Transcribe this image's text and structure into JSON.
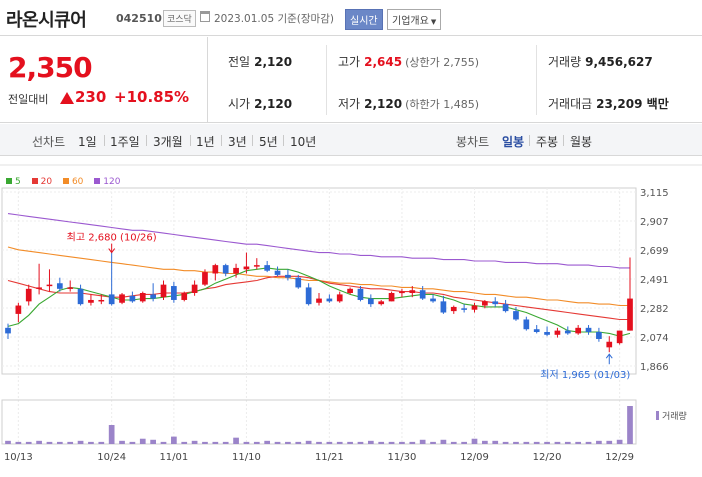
{
  "header": {
    "stock_name": "라온시큐어",
    "stock_code": "042510",
    "market": "코스닥",
    "date": "2023.01.05 기준(장마감)",
    "realtime_label": "실시간",
    "company_label": "기업개요"
  },
  "quote": {
    "price": "2,350",
    "change_label": "전일대비",
    "change_value": "230",
    "change_pct": "+10.85%",
    "prev_close_label": "전일",
    "prev_close": "2,120",
    "high_label": "고가",
    "high": "2,645",
    "upper_limit": "(상한가 2,755)",
    "volume_label": "거래량",
    "volume": "9,456,627",
    "open_label": "시가",
    "open": "2,120",
    "low_label": "저가",
    "low": "2,120",
    "lower_limit": "(하한가 1,485)",
    "amount_label": "거래대금",
    "amount": "23,209 백만"
  },
  "period": {
    "line_title": "선차트",
    "line_options": [
      "1일",
      "1주일",
      "3개월",
      "1년",
      "3년",
      "5년",
      "10년"
    ],
    "candle_title": "봉차트",
    "candle_options": [
      "일봉",
      "주봉",
      "월봉"
    ],
    "active": "일봉"
  },
  "legend": [
    {
      "label": "5",
      "color": "#3aa832"
    },
    {
      "label": "20",
      "color": "#e53935"
    },
    {
      "label": "60",
      "color": "#f28c28"
    },
    {
      "label": "120",
      "color": "#9b59d0"
    }
  ],
  "chart_data": {
    "type": "candlestick",
    "y_ticks": [
      "3,115",
      "2,907",
      "2,699",
      "2,491",
      "2,282",
      "2,074",
      "1,866"
    ],
    "ylim": [
      1866,
      3115
    ],
    "x_tick_labels": [
      "10/13",
      "10/24",
      "11/01",
      "11/10",
      "11/21",
      "11/30",
      "12/09",
      "12/20",
      "12/29"
    ],
    "x_tick_index": [
      1,
      10,
      16,
      23,
      31,
      38,
      45,
      52,
      59
    ],
    "high_annotation": "최고 2,680 (10/26)",
    "low_annotation": "최저 1,965 (01/03)",
    "volume_label": "거래량",
    "up_color": "#e4101e",
    "down_color": "#2d6bd6",
    "candles": [
      [
        2140,
        2170,
        2060,
        2100
      ],
      [
        2240,
        2320,
        2180,
        2300
      ],
      [
        2330,
        2450,
        2300,
        2420
      ],
      [
        2420,
        2600,
        2380,
        2430
      ],
      [
        2440,
        2560,
        2400,
        2450
      ],
      [
        2460,
        2500,
        2400,
        2420
      ],
      [
        2430,
        2480,
        2400,
        2430
      ],
      [
        2420,
        2450,
        2300,
        2310
      ],
      [
        2320,
        2380,
        2300,
        2340
      ],
      [
        2340,
        2380,
        2310,
        2340
      ],
      [
        2380,
        2680,
        2300,
        2310
      ],
      [
        2320,
        2390,
        2310,
        2380
      ],
      [
        2370,
        2400,
        2320,
        2330
      ],
      [
        2330,
        2400,
        2320,
        2390
      ],
      [
        2380,
        2460,
        2330,
        2350
      ],
      [
        2360,
        2480,
        2340,
        2450
      ],
      [
        2440,
        2470,
        2320,
        2340
      ],
      [
        2340,
        2400,
        2330,
        2390
      ],
      [
        2390,
        2480,
        2370,
        2450
      ],
      [
        2450,
        2560,
        2440,
        2540
      ],
      [
        2530,
        2600,
        2480,
        2590
      ],
      [
        2590,
        2600,
        2510,
        2530
      ],
      [
        2530,
        2600,
        2500,
        2570
      ],
      [
        2560,
        2680,
        2530,
        2580
      ],
      [
        2580,
        2640,
        2560,
        2590
      ],
      [
        2590,
        2620,
        2540,
        2550
      ],
      [
        2550,
        2580,
        2510,
        2520
      ],
      [
        2520,
        2560,
        2480,
        2500
      ],
      [
        2500,
        2520,
        2420,
        2430
      ],
      [
        2430,
        2460,
        2300,
        2310
      ],
      [
        2320,
        2390,
        2300,
        2350
      ],
      [
        2350,
        2380,
        2320,
        2330
      ],
      [
        2330,
        2400,
        2320,
        2380
      ],
      [
        2390,
        2430,
        2380,
        2420
      ],
      [
        2420,
        2440,
        2330,
        2340
      ],
      [
        2350,
        2380,
        2290,
        2310
      ],
      [
        2310,
        2340,
        2300,
        2330
      ],
      [
        2330,
        2400,
        2330,
        2390
      ],
      [
        2390,
        2420,
        2360,
        2400
      ],
      [
        2390,
        2440,
        2360,
        2410
      ],
      [
        2410,
        2440,
        2340,
        2350
      ],
      [
        2350,
        2380,
        2320,
        2330
      ],
      [
        2330,
        2370,
        2240,
        2250
      ],
      [
        2260,
        2300,
        2240,
        2290
      ],
      [
        2280,
        2310,
        2250,
        2270
      ],
      [
        2270,
        2320,
        2250,
        2300
      ],
      [
        2300,
        2340,
        2280,
        2330
      ],
      [
        2330,
        2360,
        2290,
        2310
      ],
      [
        2310,
        2340,
        2250,
        2260
      ],
      [
        2260,
        2290,
        2190,
        2200
      ],
      [
        2200,
        2220,
        2120,
        2130
      ],
      [
        2130,
        2160,
        2100,
        2110
      ],
      [
        2110,
        2150,
        2080,
        2090
      ],
      [
        2090,
        2140,
        2070,
        2120
      ],
      [
        2120,
        2150,
        2090,
        2100
      ],
      [
        2100,
        2160,
        2090,
        2140
      ],
      [
        2140,
        2160,
        2090,
        2110
      ],
      [
        2110,
        2140,
        2040,
        2060
      ],
      [
        2000,
        2080,
        1965,
        2040
      ],
      [
        2030,
        2120,
        2020,
        2120
      ],
      [
        2120,
        2645,
        2120,
        2350
      ]
    ],
    "ma5": [
      2150,
      2170,
      2230,
      2310,
      2360,
      2410,
      2430,
      2420,
      2400,
      2380,
      2360,
      2340,
      2340,
      2350,
      2350,
      2360,
      2370,
      2380,
      2400,
      2420,
      2460,
      2490,
      2520,
      2550,
      2560,
      2570,
      2560,
      2560,
      2540,
      2510,
      2480,
      2440,
      2410,
      2380,
      2360,
      2350,
      2350,
      2350,
      2360,
      2370,
      2380,
      2380,
      2360,
      2340,
      2310,
      2300,
      2290,
      2290,
      2290,
      2270,
      2250,
      2220,
      2190,
      2160,
      2120,
      2110,
      2110,
      2110,
      2100,
      2080,
      2100
    ],
    "ma20": [
      2480,
      2460,
      2440,
      2420,
      2400,
      2390,
      2390,
      2390,
      2380,
      2370,
      2360,
      2360,
      2370,
      2380,
      2380,
      2390,
      2390,
      2390,
      2400,
      2420,
      2430,
      2450,
      2460,
      2470,
      2480,
      2500,
      2510,
      2510,
      2510,
      2500,
      2480,
      2460,
      2450,
      2440,
      2430,
      2420,
      2420,
      2410,
      2400,
      2400,
      2390,
      2390,
      2380,
      2360,
      2350,
      2340,
      2330,
      2320,
      2310,
      2300,
      2290,
      2280,
      2270,
      2260,
      2250,
      2240,
      2230,
      2220,
      2210,
      2200,
      2200
    ],
    "ma60": [
      2720,
      2700,
      2690,
      2680,
      2670,
      2660,
      2650,
      2640,
      2630,
      2620,
      2610,
      2600,
      2590,
      2580,
      2570,
      2560,
      2560,
      2550,
      2550,
      2540,
      2540,
      2530,
      2530,
      2520,
      2510,
      2510,
      2500,
      2500,
      2490,
      2480,
      2480,
      2470,
      2460,
      2460,
      2450,
      2450,
      2440,
      2440,
      2430,
      2430,
      2420,
      2420,
      2410,
      2400,
      2400,
      2390,
      2380,
      2380,
      2370,
      2360,
      2360,
      2350,
      2340,
      2340,
      2330,
      2320,
      2320,
      2310,
      2310,
      2300,
      2300
    ],
    "ma120": [
      2960,
      2950,
      2940,
      2930,
      2920,
      2910,
      2900,
      2890,
      2880,
      2870,
      2860,
      2850,
      2840,
      2840,
      2830,
      2820,
      2810,
      2800,
      2790,
      2780,
      2770,
      2760,
      2750,
      2740,
      2740,
      2730,
      2720,
      2710,
      2700,
      2690,
      2680,
      2680,
      2670,
      2670,
      2660,
      2660,
      2650,
      2650,
      2650,
      2640,
      2640,
      2640,
      2630,
      2630,
      2630,
      2620,
      2620,
      2620,
      2610,
      2610,
      2610,
      2600,
      2600,
      2600,
      2590,
      2590,
      2590,
      2580,
      2580,
      2570,
      2570
    ],
    "volumes": [
      3,
      2,
      2,
      3,
      2,
      2,
      2,
      3,
      2,
      2,
      18,
      3,
      2,
      5,
      4,
      2,
      7,
      2,
      3,
      2,
      2,
      2,
      6,
      2,
      2,
      3,
      2,
      2,
      2,
      3,
      2,
      2,
      2,
      2,
      2,
      3,
      2,
      2,
      2,
      2,
      4,
      2,
      4,
      2,
      2,
      5,
      3,
      3,
      2,
      2,
      2,
      2,
      2,
      2,
      2,
      2,
      2,
      3,
      3,
      4,
      36
    ]
  }
}
